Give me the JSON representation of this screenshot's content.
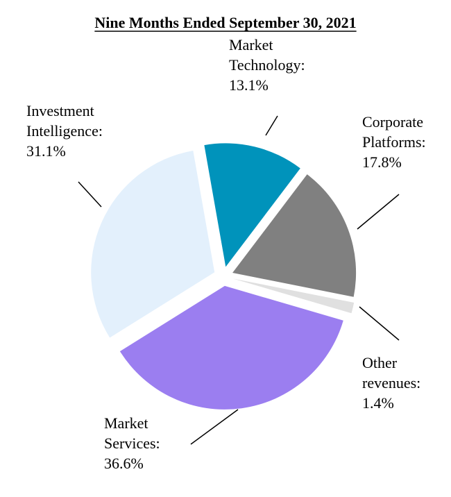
{
  "chart_data": {
    "type": "pie",
    "title": "Nine Months Ended September 30, 2021",
    "slices": [
      {
        "name": "Market Technology",
        "label_lines": [
          "Market",
          "Technology:",
          "13.1%"
        ],
        "value": 13.1,
        "color": "#0093BB"
      },
      {
        "name": "Corporate Platforms",
        "label_lines": [
          "Corporate",
          "Platforms:",
          "17.8%"
        ],
        "value": 17.8,
        "color": "#808080"
      },
      {
        "name": "Other revenues",
        "label_lines": [
          "Other",
          "revenues:",
          "1.4%"
        ],
        "value": 1.4,
        "color": "#E0E0E0"
      },
      {
        "name": "Market Services",
        "label_lines": [
          "Market",
          "Services:",
          "36.6%"
        ],
        "value": 36.6,
        "color": "#9B7EF0"
      },
      {
        "name": "Investment Intelligence",
        "label_lines": [
          "Investment",
          "Intelligence:",
          "31.1%"
        ],
        "value": 31.1,
        "color": "#E3F0FC"
      }
    ],
    "legend": "none",
    "exploded": true
  }
}
